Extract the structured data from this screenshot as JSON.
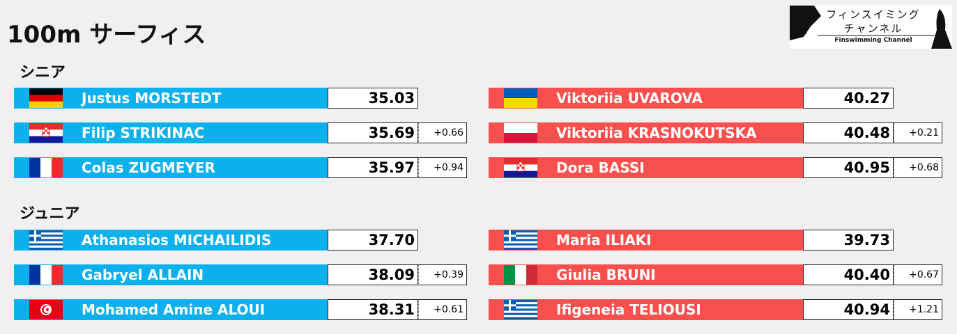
{
  "title": "100m サーフィス",
  "logo": {
    "line1": "フィンスイミング",
    "line2": "チャンネル",
    "line3": "Finswimming Channel"
  },
  "sections": [
    {
      "label": "シニア",
      "men": [
        {
          "name": "Justus MORSTEDT",
          "time": "35.03"
        },
        {
          "name": "Filip STRIKINAC",
          "time": "35.69",
          "diff": "+0.66"
        },
        {
          "name": "Colas ZUGMEYER",
          "time": "35.97",
          "diff": "+0.94"
        }
      ],
      "women": [
        {
          "name": "Viktoriia UVAROVA",
          "time": "40.27"
        },
        {
          "name": "Viktoriia KRASNOKUTSKA",
          "time": "40.48",
          "diff": "+0.21"
        },
        {
          "name": "Dora BASSI",
          "time": "40.95",
          "diff": "+0.68"
        }
      ]
    },
    {
      "label": "ジュニア",
      "men": [
        {
          "name": "Athanasios MICHAILIDIS",
          "time": "37.70"
        },
        {
          "name": "Gabryel ALLAIN",
          "time": "38.09",
          "diff": "+0.39"
        },
        {
          "name": "Mohamed Amine ALOUI",
          "time": "38.31",
          "diff": "+0.61"
        }
      ],
      "women": [
        {
          "name": "Maria ILIAKI",
          "time": "39.73"
        },
        {
          "name": "Giulia BRUNI",
          "time": "40.40",
          "diff": "+0.67"
        },
        {
          "name": "Ifigeneia TELIOUSI",
          "time": "40.94",
          "diff": "+1.21"
        }
      ]
    }
  ]
}
